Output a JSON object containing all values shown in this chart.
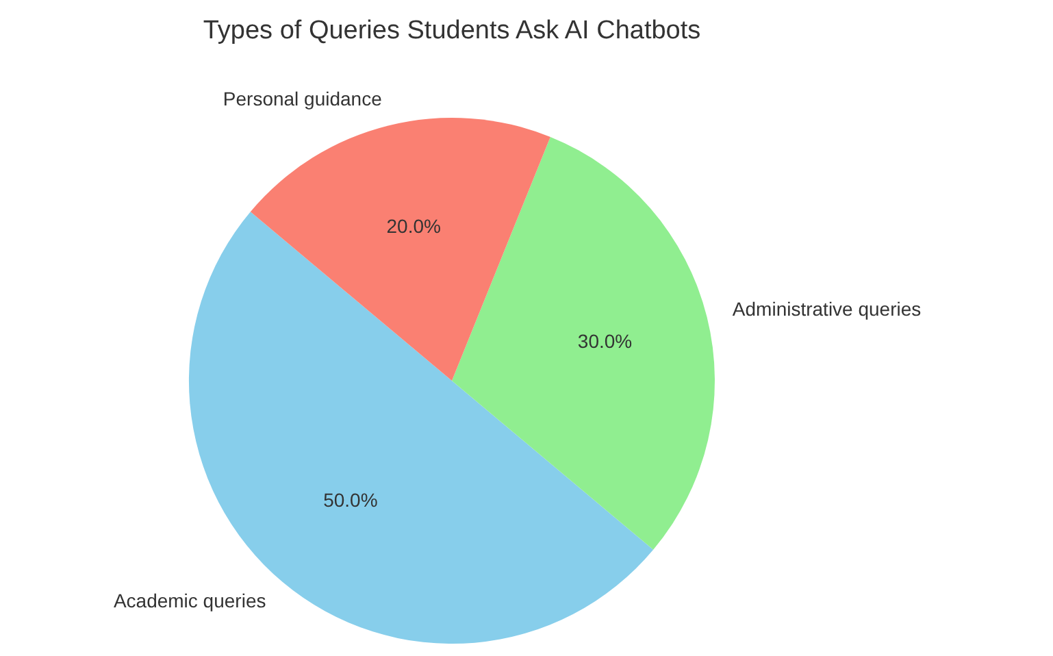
{
  "chart_data": {
    "type": "pie",
    "title": "Types of Queries Students Ask AI Chatbots",
    "categories": [
      "Academic queries",
      "Administrative queries",
      "Personal guidance"
    ],
    "values": [
      50,
      30,
      20
    ],
    "colors": [
      "#87ceeb",
      "#90ee90",
      "#fa8072"
    ],
    "value_labels": [
      "50.0%",
      "30.0%",
      "20.0%"
    ]
  }
}
